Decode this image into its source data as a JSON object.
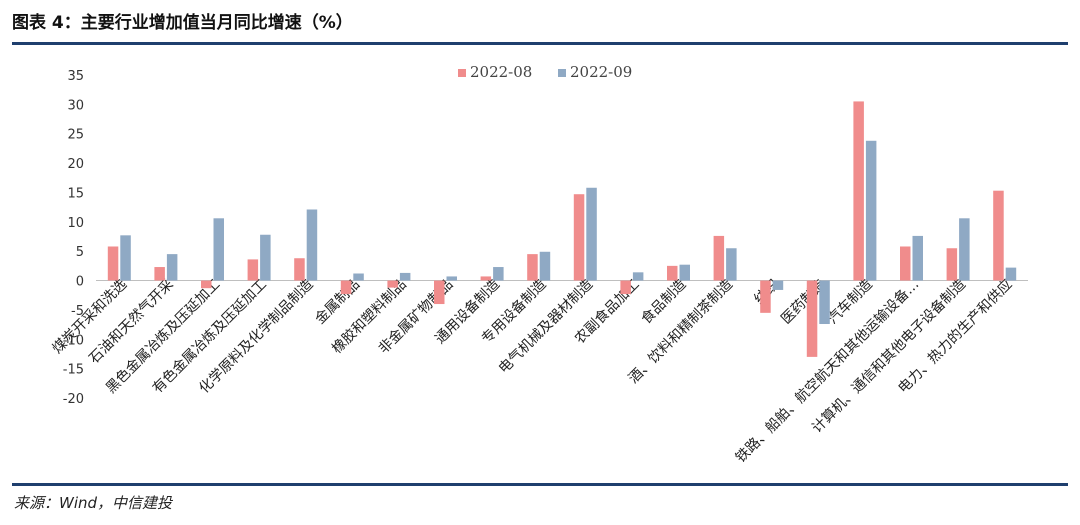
{
  "title": "图表 4：主要行业增加值当月同比增速（%）",
  "source": "来源：Wind，中信建投",
  "colors": {
    "series1": "#f08c8c",
    "series2": "#8fa9c4",
    "rule": "#1f3f6e"
  },
  "chart_data": {
    "type": "bar",
    "ylim": [
      -20,
      35
    ],
    "yticks": [
      35,
      30,
      25,
      20,
      15,
      10,
      5,
      0,
      -5,
      -10,
      -15,
      -20
    ],
    "grid": false,
    "legend": "top-center",
    "categories": [
      "煤炭开采和洗选",
      "石油和天然气开采",
      "黑色金属冶炼及压延加工",
      "有色金属冶炼及压延加工",
      "化学原料及化学制品制造",
      "金属制品",
      "橡胶和塑料制品",
      "非金属矿物制品",
      "通用设备制造",
      "专用设备制造",
      "电气机械及器材制造",
      "农副食品加工",
      "食品制造",
      "酒、饮料和精制茶制造",
      "纺织",
      "医药制造",
      "汽车制造",
      "铁路、船舶、航空航天和其他运输设备…",
      "计算机、通信和其他电子设备制造",
      "电力、热力的生产和供应"
    ],
    "series": [
      {
        "name": "2022-08",
        "values": [
          5.8,
          2.3,
          -1.3,
          3.6,
          3.8,
          -2.3,
          -1.2,
          -4.0,
          0.7,
          4.5,
          14.7,
          -2.3,
          2.5,
          7.6,
          -5.5,
          -13.0,
          30.5,
          5.8,
          5.5,
          15.3
        ]
      },
      {
        "name": "2022-09",
        "values": [
          7.7,
          4.5,
          10.6,
          7.8,
          12.1,
          1.2,
          1.3,
          0.7,
          2.3,
          4.9,
          15.8,
          1.4,
          2.7,
          5.5,
          -1.6,
          -7.4,
          23.8,
          7.6,
          10.6,
          2.2
        ]
      }
    ]
  }
}
